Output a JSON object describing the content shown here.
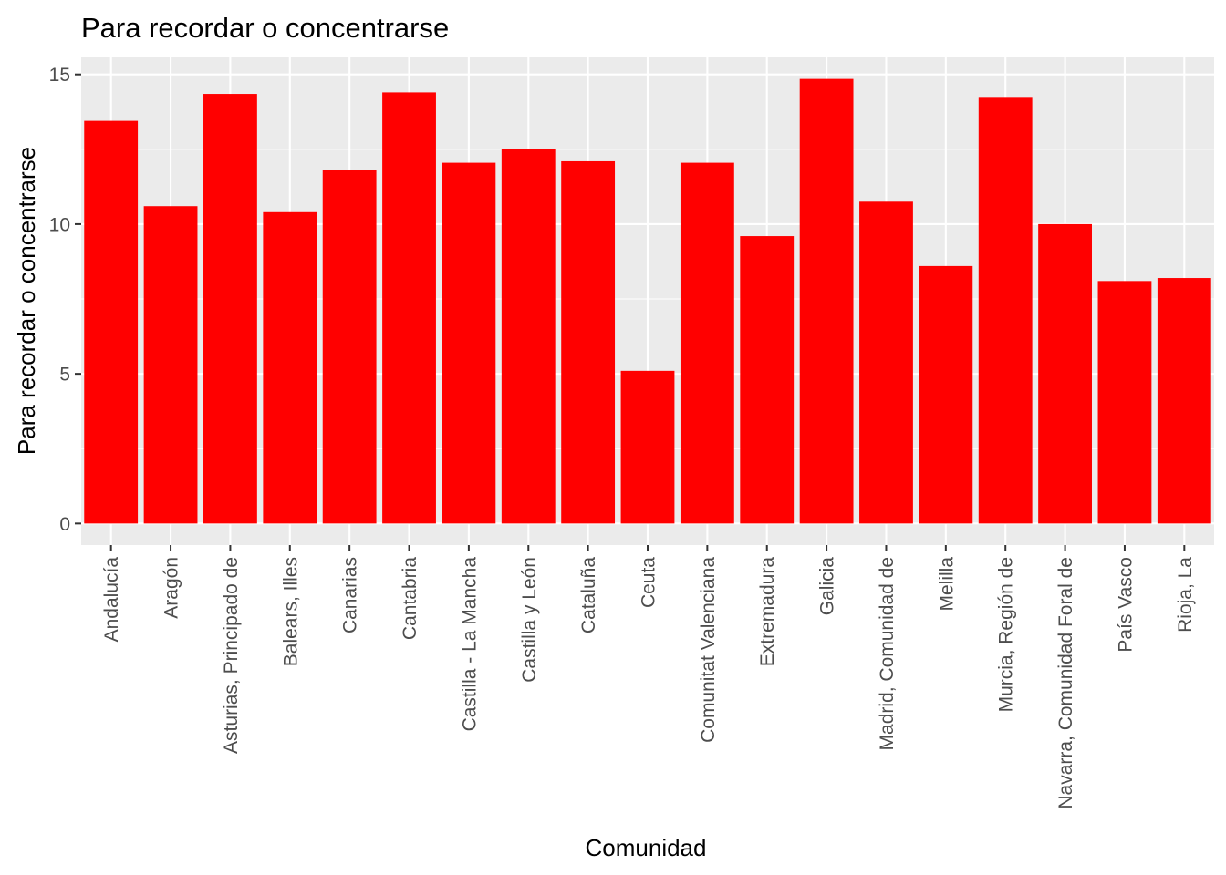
{
  "chart_data": {
    "type": "bar",
    "title": "Para recordar o concentrarse",
    "xlabel": "Comunidad",
    "ylabel": "Para recordar o concentrarse",
    "categories": [
      "Andalucía",
      "Aragón",
      "Asturias, Principado de",
      "Balears, Illes",
      "Canarias",
      "Cantabria",
      "Castilla - La Mancha",
      "Castilla y León",
      "Cataluña",
      "Ceuta",
      "Comunitat Valenciana",
      "Extremadura",
      "Galicia",
      "Madrid, Comunidad de",
      "Melilla",
      "Murcia, Región de",
      "Navarra, Comunidad Foral de",
      "País Vasco",
      "Rioja, La"
    ],
    "values": [
      13.45,
      10.6,
      14.35,
      10.4,
      11.8,
      14.4,
      12.05,
      12.5,
      12.1,
      5.1,
      12.05,
      9.6,
      14.85,
      10.75,
      8.6,
      14.25,
      10.0,
      8.1,
      8.2
    ],
    "ylim": [
      -0.72,
      15.6
    ],
    "yticks": [
      0,
      5,
      10,
      15
    ],
    "ytick_labels": [
      "0",
      "5",
      "10",
      "15"
    ],
    "bar_color": "#ff0000",
    "panel_color": "#ebebeb",
    "grid": true,
    "legend": "none"
  }
}
